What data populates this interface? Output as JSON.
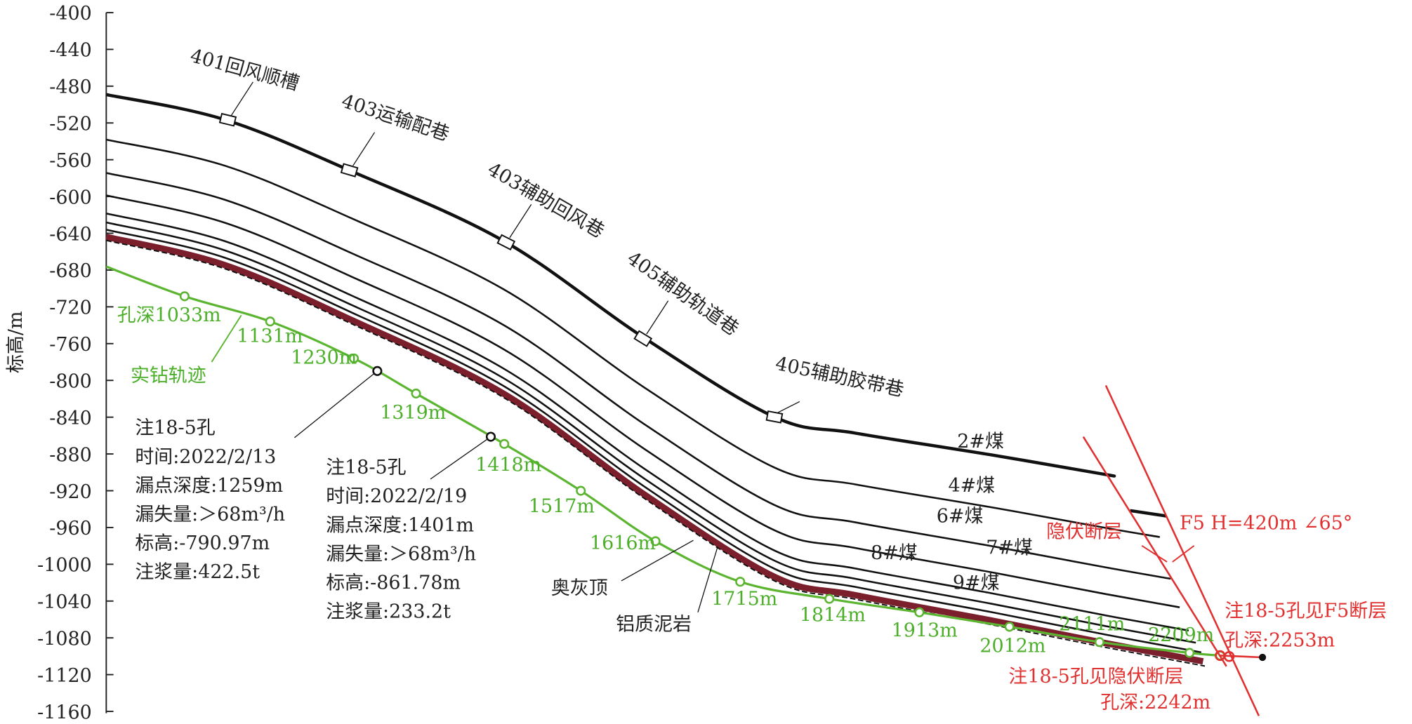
{
  "chart_data": {
    "type": "section",
    "y_axis_label": "标高/m",
    "ylim": [
      -1160,
      -400
    ],
    "yticks": [
      -400,
      -440,
      -480,
      -520,
      -560,
      -600,
      -640,
      -680,
      -720,
      -760,
      -800,
      -840,
      -880,
      -920,
      -960,
      -1000,
      -1040,
      -1080,
      -1120,
      -1160
    ],
    "roadways": [
      "401回风顺槽",
      "403运输配巷",
      "403辅助回风巷",
      "405辅助轨道巷",
      "405辅助胶带巷"
    ],
    "coal_seams": [
      "2#煤",
      "4#煤",
      "6#煤",
      "7#煤",
      "8#煤",
      "9#煤"
    ],
    "strata": [
      "奥灰顶",
      "铝质泥岩"
    ],
    "borehole_label": "实钻轨迹",
    "borehole_depths": [
      "孔深1033m",
      "1131m",
      "1230m",
      "1319m",
      "1418m",
      "1517m",
      "1616m",
      "1715m",
      "1814m",
      "1913m",
      "2012m",
      "2111m",
      "2209m"
    ],
    "leak_points": [
      [
        "注18-5孔",
        "时间:2022/2/13",
        "漏点深度:1259m",
        "漏失量:＞68m³/h",
        "标高:-790.97m",
        "注浆量:422.5t"
      ],
      [
        "注18-5孔",
        "时间:2022/2/19",
        "漏点深度:1401m",
        "漏失量:＞68m³/h",
        "标高:-861.78m",
        "注浆量:233.2t"
      ]
    ],
    "hidden_fault_label": "隐伏断层",
    "f5_label": "F5 H=420m ∠65°",
    "f5_hit": [
      "注18-5孔见F5断层",
      "孔深:2253m"
    ],
    "hidden_hit": [
      "注18-5孔见隐伏断层",
      "孔深:2242m"
    ]
  }
}
